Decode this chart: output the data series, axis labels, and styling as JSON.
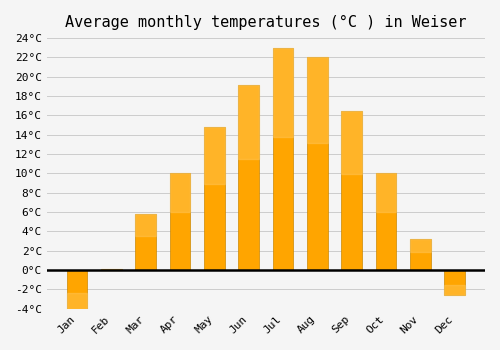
{
  "months": [
    "Jan",
    "Feb",
    "Mar",
    "Apr",
    "May",
    "Jun",
    "Jul",
    "Aug",
    "Sep",
    "Oct",
    "Nov",
    "Dec"
  ],
  "values": [
    -4.0,
    0.1,
    5.8,
    10.0,
    14.8,
    19.2,
    23.0,
    22.0,
    16.5,
    10.0,
    3.2,
    -2.6
  ],
  "bar_color": "#FFA500",
  "bar_edge_color": "#CC8800",
  "title": "Average monthly temperatures (°C ) in Weiser",
  "ylim": [
    -4,
    24
  ],
  "yticks": [
    -4,
    -2,
    0,
    2,
    4,
    6,
    8,
    10,
    12,
    14,
    16,
    18,
    20,
    22,
    24
  ],
  "ytick_labels": [
    "-4°C",
    "-2°C",
    "0°C",
    "2°C",
    "4°C",
    "6°C",
    "8°C",
    "10°C",
    "12°C",
    "14°C",
    "16°C",
    "18°C",
    "20°C",
    "22°C",
    "24°C"
  ],
  "bg_color": "#f5f5f5",
  "grid_color": "#cccccc",
  "zero_line_color": "#000000",
  "title_fontsize": 11,
  "tick_fontsize": 8
}
